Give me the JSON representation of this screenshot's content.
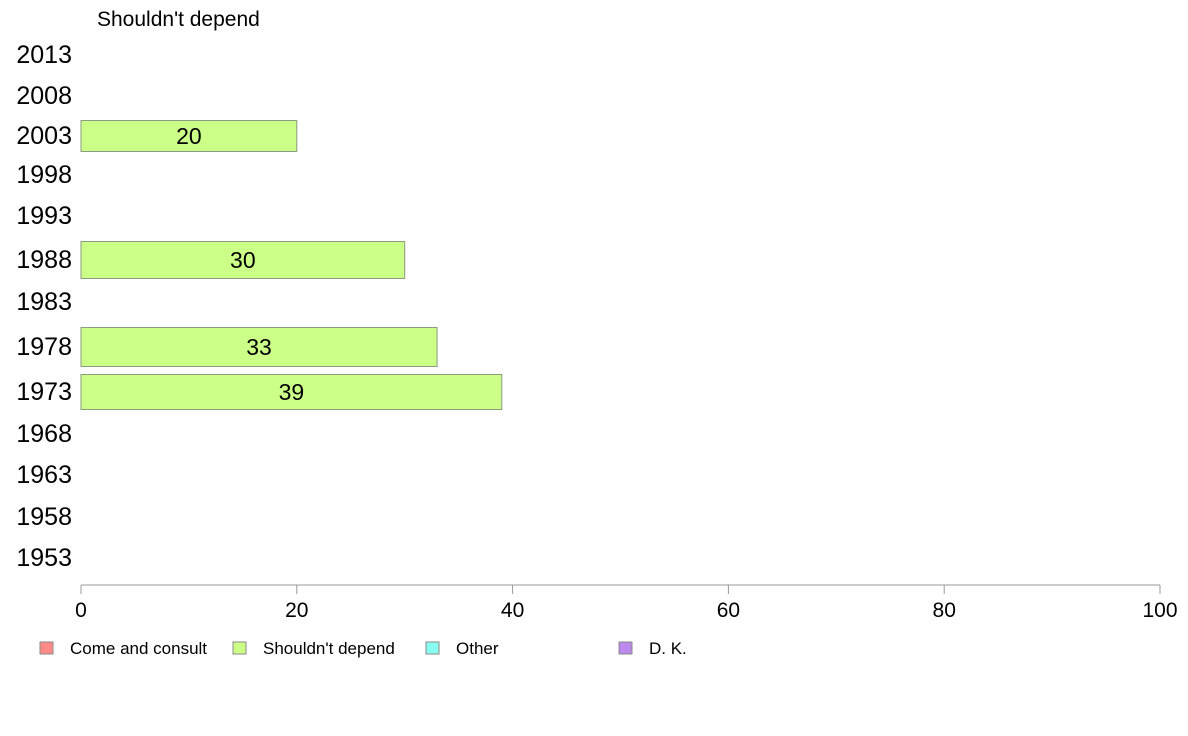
{
  "chart_data": {
    "type": "bar",
    "orientation": "horizontal",
    "title": "Shouldn't depend",
    "categories": [
      "2013",
      "2008",
      "2003",
      "1998",
      "1993",
      "1988",
      "1983",
      "1978",
      "1973",
      "1968",
      "1963",
      "1958",
      "1953"
    ],
    "series": [
      {
        "name": "Shouldn't depend",
        "color": "#ccff88",
        "values": [
          null,
          null,
          20,
          null,
          null,
          30,
          null,
          33,
          39,
          null,
          null,
          null,
          null
        ],
        "labels": [
          "",
          "",
          "20",
          "",
          "",
          "30",
          "",
          "33",
          "39",
          "",
          "",
          "",
          ""
        ]
      }
    ],
    "xlim": [
      0,
      100
    ],
    "xticks": [
      "0",
      "20",
      "40",
      "60",
      "80",
      "100"
    ],
    "grid": false,
    "legend": {
      "placement": "bottom",
      "items": [
        {
          "label": "Come and consult",
          "color": "#ff8a88"
        },
        {
          "label": "Shouldn't depend",
          "color": "#ccff88"
        },
        {
          "label": "Other",
          "color": "#88fff0"
        },
        {
          "label": "D. K.",
          "color": "#bb88ee"
        }
      ]
    }
  }
}
